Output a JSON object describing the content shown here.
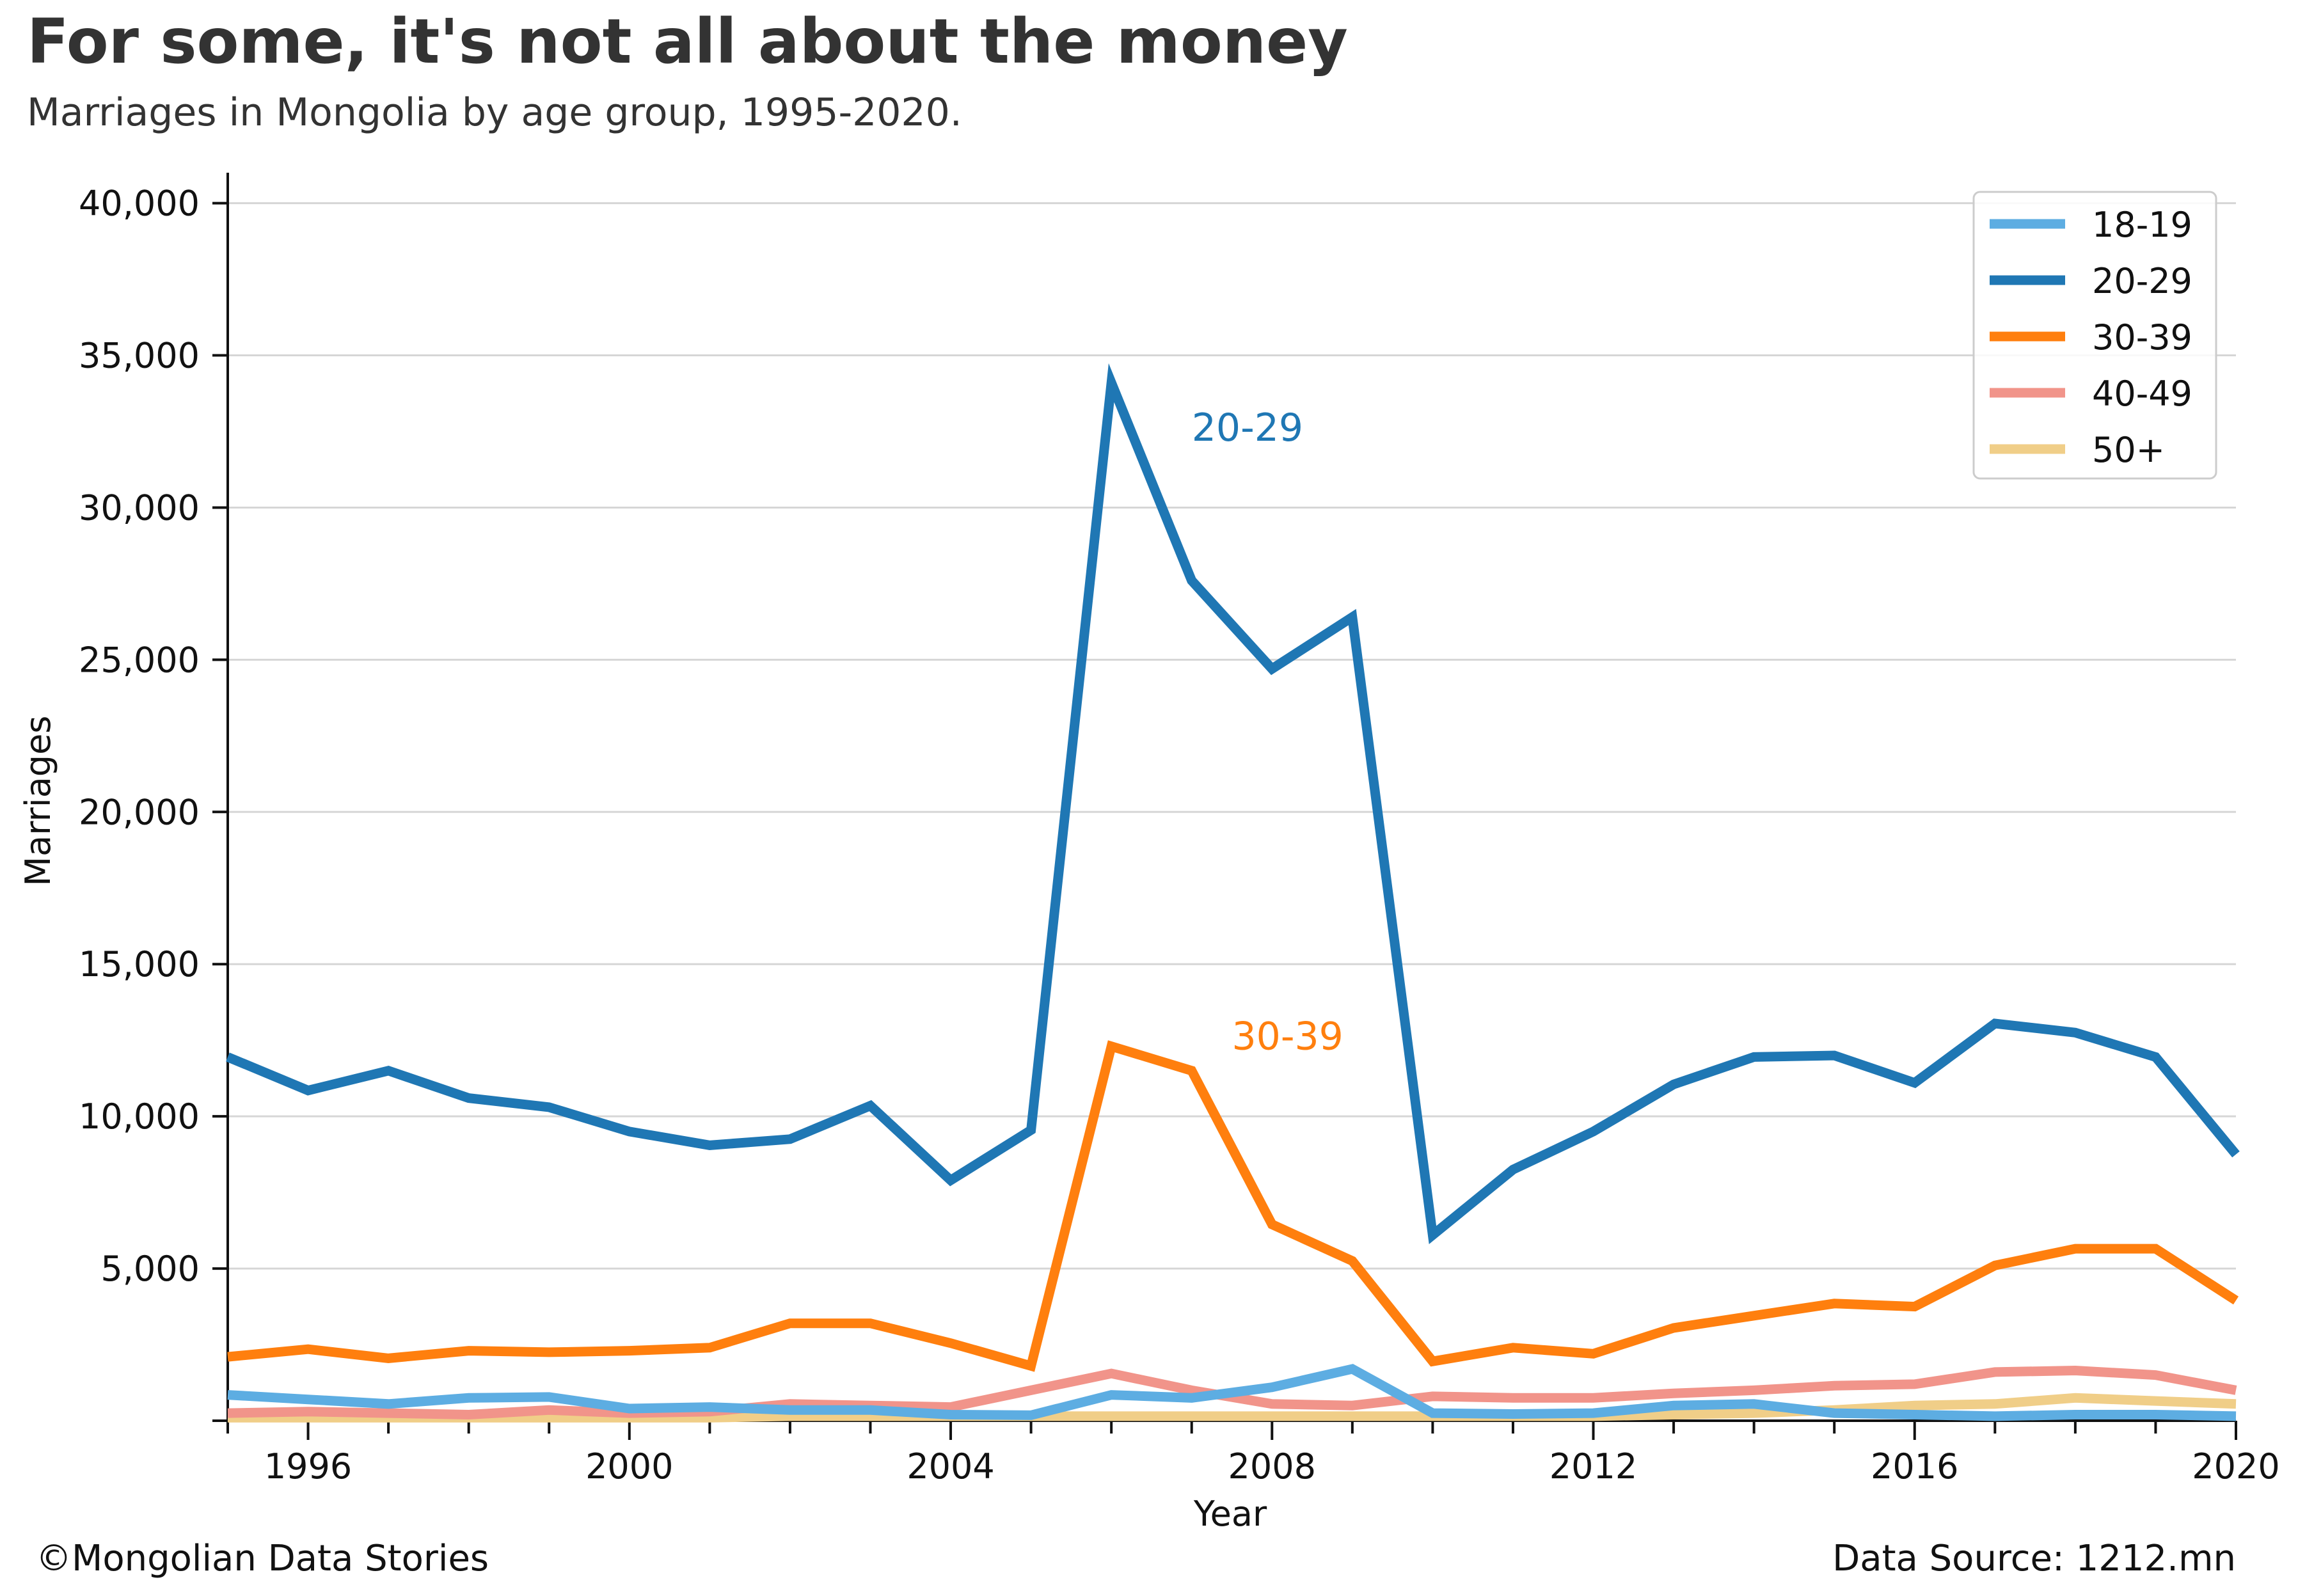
{
  "chart_data": {
    "type": "line",
    "title": "For some, it's not all about the money",
    "subtitle": "Marriages in Mongolia by age group, 1995-2020.",
    "xlabel": "Year",
    "ylabel": "Marriages",
    "xlim": [
      1995,
      2020
    ],
    "ylim": [
      0,
      41000
    ],
    "x_ticks": [
      1996,
      2000,
      2004,
      2008,
      2012,
      2016,
      2020
    ],
    "y_ticks": [
      5000,
      10000,
      15000,
      20000,
      25000,
      30000,
      35000,
      40000
    ],
    "y_tick_labels": [
      "5,000",
      "10,000",
      "15,000",
      "20,000",
      "25,000",
      "30,000",
      "35,000",
      "40,000"
    ],
    "grid": "horizontal",
    "legend_position": "top-right",
    "x": [
      1995,
      1996,
      1997,
      1998,
      1999,
      2000,
      2001,
      2002,
      2003,
      2004,
      2005,
      2006,
      2007,
      2008,
      2009,
      2010,
      2011,
      2012,
      2013,
      2014,
      2015,
      2016,
      2017,
      2018,
      2019,
      2020
    ],
    "series": [
      {
        "name": "18-19",
        "color": "#5dade2",
        "values": [
          850,
          700,
          550,
          750,
          780,
          400,
          450,
          350,
          350,
          200,
          180,
          850,
          750,
          1100,
          1700,
          250,
          220,
          250,
          500,
          550,
          250,
          200,
          150,
          200,
          200,
          150
        ]
      },
      {
        "name": "20-29",
        "color": "#1f77b4",
        "values": [
          11950,
          10850,
          11500,
          10600,
          10300,
          9500,
          9050,
          9250,
          10350,
          7900,
          9550,
          34100,
          27600,
          24700,
          26400,
          6100,
          8250,
          9500,
          11050,
          11950,
          12000,
          11100,
          13050,
          12750,
          11950,
          8750
        ]
      },
      {
        "name": "30-39",
        "color": "#ff7f0e",
        "values": [
          2100,
          2350,
          2050,
          2300,
          2250,
          2300,
          2400,
          3200,
          3200,
          2550,
          1800,
          12300,
          11500,
          6450,
          5250,
          1950,
          2400,
          2200,
          3050,
          3450,
          3850,
          3750,
          5100,
          5650,
          5650,
          3950
        ]
      },
      {
        "name": "40-49",
        "color": "#f1948a",
        "values": [
          250,
          300,
          250,
          200,
          350,
          250,
          300,
          550,
          500,
          450,
          1000,
          1550,
          1000,
          550,
          500,
          800,
          750,
          750,
          900,
          1000,
          1150,
          1200,
          1600,
          1650,
          1500,
          1000
        ]
      },
      {
        "name": "50+",
        "color": "#f0ce88",
        "values": [
          100,
          100,
          100,
          100,
          100,
          100,
          100,
          150,
          150,
          150,
          150,
          150,
          150,
          150,
          150,
          150,
          150,
          150,
          200,
          250,
          350,
          500,
          550,
          750,
          650,
          550
        ]
      }
    ],
    "annotations": [
      {
        "text": "20-29",
        "x": 2007.0,
        "y": 32200,
        "color": "#1f77b4"
      },
      {
        "text": "30-39",
        "x": 2007.5,
        "y": 12200,
        "color": "#ff7f0e"
      }
    ]
  },
  "footer": {
    "credit": "©Mongolian Data Stories",
    "source": "Data Source: 1212.mn"
  }
}
